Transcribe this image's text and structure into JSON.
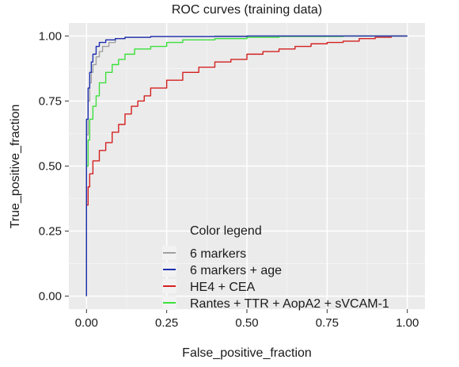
{
  "chart_data": {
    "type": "line",
    "title": "ROC curves (training data)",
    "xlabel": "False_positive_fraction",
    "ylabel": "True_positive_fraction",
    "xlim": [
      0,
      1
    ],
    "ylim": [
      0,
      1
    ],
    "xticks": [
      "0.00",
      "0.25",
      "0.50",
      "0.75",
      "1.00"
    ],
    "yticks": [
      "0.00",
      "0.25",
      "0.50",
      "0.75",
      "1.00"
    ],
    "grid": true,
    "legend": {
      "title": "Color legend",
      "placement": "bottom-right",
      "entries": [
        "6 markers",
        "6 markers + age",
        "HE4 + CEA",
        "Rantes + TTR + AopA2 + sVCAM-1"
      ]
    },
    "series": [
      {
        "name": "6 markers",
        "color": "#a0a0a0",
        "points": [
          [
            0,
            0
          ],
          [
            0,
            0.45
          ],
          [
            0.005,
            0.62
          ],
          [
            0.01,
            0.75
          ],
          [
            0.015,
            0.82
          ],
          [
            0.02,
            0.86
          ],
          [
            0.03,
            0.89
          ],
          [
            0.04,
            0.92
          ],
          [
            0.05,
            0.94
          ],
          [
            0.07,
            0.96
          ],
          [
            0.09,
            0.975
          ],
          [
            0.12,
            0.99
          ],
          [
            0.2,
            0.995
          ],
          [
            0.4,
            0.998
          ],
          [
            1,
            1
          ]
        ]
      },
      {
        "name": "6 markers + age",
        "color": "#1f2fb0",
        "points": [
          [
            0,
            0
          ],
          [
            0,
            0.5
          ],
          [
            0.005,
            0.68
          ],
          [
            0.01,
            0.8
          ],
          [
            0.015,
            0.86
          ],
          [
            0.02,
            0.9
          ],
          [
            0.03,
            0.93
          ],
          [
            0.04,
            0.96
          ],
          [
            0.06,
            0.975
          ],
          [
            0.09,
            0.985
          ],
          [
            0.12,
            0.99
          ],
          [
            0.2,
            0.995
          ],
          [
            0.5,
            0.998
          ],
          [
            1,
            1
          ]
        ]
      },
      {
        "name": "HE4 + CEA",
        "color": "#d42020",
        "points": [
          [
            0,
            0
          ],
          [
            0,
            0.25
          ],
          [
            0.005,
            0.35
          ],
          [
            0.01,
            0.42
          ],
          [
            0.02,
            0.47
          ],
          [
            0.04,
            0.52
          ],
          [
            0.06,
            0.56
          ],
          [
            0.08,
            0.59
          ],
          [
            0.1,
            0.63
          ],
          [
            0.12,
            0.66
          ],
          [
            0.14,
            0.7
          ],
          [
            0.16,
            0.73
          ],
          [
            0.18,
            0.75
          ],
          [
            0.2,
            0.77
          ],
          [
            0.25,
            0.8
          ],
          [
            0.3,
            0.83
          ],
          [
            0.35,
            0.86
          ],
          [
            0.4,
            0.88
          ],
          [
            0.45,
            0.9
          ],
          [
            0.5,
            0.91
          ],
          [
            0.55,
            0.93
          ],
          [
            0.6,
            0.94
          ],
          [
            0.65,
            0.95
          ],
          [
            0.7,
            0.96
          ],
          [
            0.75,
            0.97
          ],
          [
            0.8,
            0.975
          ],
          [
            0.85,
            0.98
          ],
          [
            0.9,
            0.99
          ],
          [
            0.95,
            0.995
          ],
          [
            1,
            1
          ]
        ]
      },
      {
        "name": "Rantes + TTR + AopA2 + sVCAM-1",
        "color": "#3de03d",
        "points": [
          [
            0,
            0
          ],
          [
            0,
            0.3
          ],
          [
            0.005,
            0.5
          ],
          [
            0.01,
            0.6
          ],
          [
            0.02,
            0.68
          ],
          [
            0.03,
            0.73
          ],
          [
            0.04,
            0.77
          ],
          [
            0.06,
            0.82
          ],
          [
            0.08,
            0.86
          ],
          [
            0.1,
            0.89
          ],
          [
            0.12,
            0.91
          ],
          [
            0.15,
            0.93
          ],
          [
            0.2,
            0.95
          ],
          [
            0.25,
            0.96
          ],
          [
            0.3,
            0.975
          ],
          [
            0.4,
            0.985
          ],
          [
            0.5,
            0.99
          ],
          [
            0.6,
            0.995
          ],
          [
            0.8,
            0.998
          ],
          [
            1,
            1
          ]
        ]
      }
    ]
  }
}
